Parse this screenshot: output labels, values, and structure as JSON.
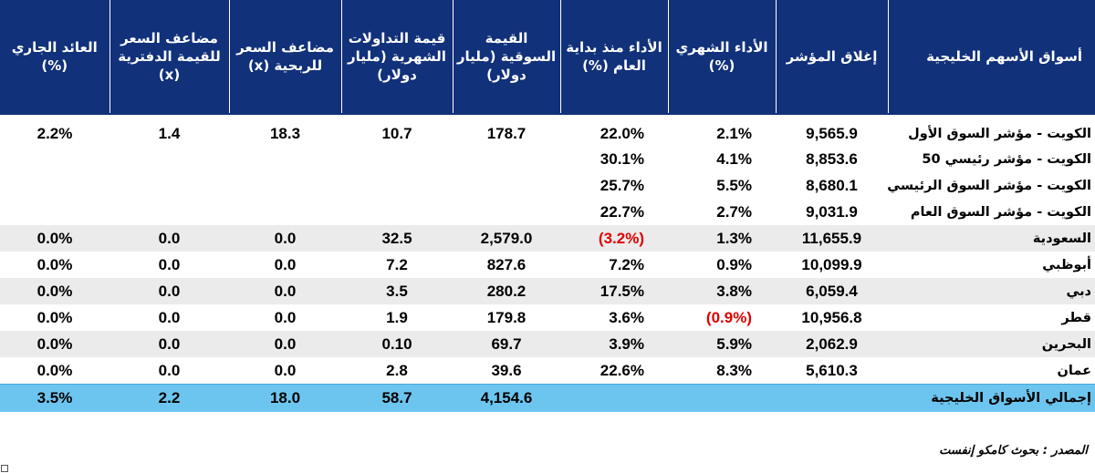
{
  "headers": {
    "yield": "العائد الجاري (%)",
    "pb": "مضاعف السعر للقيمة الدفترية (x)",
    "pe": "مضاعف السعر للربحية (x)",
    "turnover": "قيمة التداولات الشهرية (مليار دولار)",
    "mcap": "القيمة السوقية (مليار دولار)",
    "ytd": "الأداء منذ بداية العام (%)",
    "mtd": "الأداء الشهري (%)",
    "close": "إغلاق المؤشر",
    "market": "أسواق الأسهم الخليجية"
  },
  "rows": [
    {
      "market": "الكويت - مؤشر السوق الأول",
      "close": "9,565.9",
      "mtd": "2.1%",
      "ytd": "22.0%",
      "mcap": "178.7",
      "turnover": "10.7",
      "pe": "18.3",
      "pb": "1.4",
      "yield": "2.2%"
    },
    {
      "market": "الكويت - مؤشر رئيسي 50",
      "close": "8,853.6",
      "mtd": "4.1%",
      "ytd": "30.1%",
      "mcap": "",
      "turnover": "",
      "pe": "",
      "pb": "",
      "yield": ""
    },
    {
      "market": "الكويت - مؤشر السوق الرئيسي",
      "close": "8,680.1",
      "mtd": "5.5%",
      "ytd": "25.7%",
      "mcap": "",
      "turnover": "",
      "pe": "",
      "pb": "",
      "yield": ""
    },
    {
      "market": "الكويت - مؤشر السوق العام",
      "close": "9,031.9",
      "mtd": "2.7%",
      "ytd": "22.7%",
      "mcap": "",
      "turnover": "",
      "pe": "",
      "pb": "",
      "yield": ""
    },
    {
      "market": "السعودية",
      "close": "11,655.9",
      "mtd": "1.3%",
      "ytd": "(3.2%)",
      "mcap": "2,579.0",
      "turnover": "32.5",
      "pe": "0.0",
      "pb": "0.0",
      "yield": "0.0%"
    },
    {
      "market": "أبوظبي",
      "close": "10,099.9",
      "mtd": "0.9%",
      "ytd": "7.2%",
      "mcap": "827.6",
      "turnover": "7.2",
      "pe": "0.0",
      "pb": "0.0",
      "yield": "0.0%"
    },
    {
      "market": "دبي",
      "close": "6,059.4",
      "mtd": "3.8%",
      "ytd": "17.5%",
      "mcap": "280.2",
      "turnover": "3.5",
      "pe": "0.0",
      "pb": "0.0",
      "yield": "0.0%"
    },
    {
      "market": "قطر",
      "close": "10,956.8",
      "mtd": "(0.9%)",
      "ytd": "3.6%",
      "mcap": "179.8",
      "turnover": "1.9",
      "pe": "0.0",
      "pb": "0.0",
      "yield": "0.0%"
    },
    {
      "market": "البحرين",
      "close": "2,062.9",
      "mtd": "5.9%",
      "ytd": "3.9%",
      "mcap": "69.7",
      "turnover": "0.10",
      "pe": "0.0",
      "pb": "0.0",
      "yield": "0.0%"
    },
    {
      "market": "عمان",
      "close": "5,610.3",
      "mtd": "8.3%",
      "ytd": "22.6%",
      "mcap": "39.6",
      "turnover": "2.8",
      "pe": "0.0",
      "pb": "0.0",
      "yield": "0.0%"
    }
  ],
  "total": {
    "market": "إجمالي الأسواق الخليجية",
    "close": "",
    "mtd": "",
    "ytd": "",
    "mcap": "4,154.6",
    "turnover": "58.7",
    "pe": "18.0",
    "pb": "2.2",
    "yield": "3.5%"
  },
  "source": "المصدر : بحوث كامكو إنفست",
  "colors": {
    "header_bg": "#11317a",
    "shaded_row": "#ebebeb",
    "total_bg": "#6cc5ee",
    "negative": "#e00000"
  }
}
